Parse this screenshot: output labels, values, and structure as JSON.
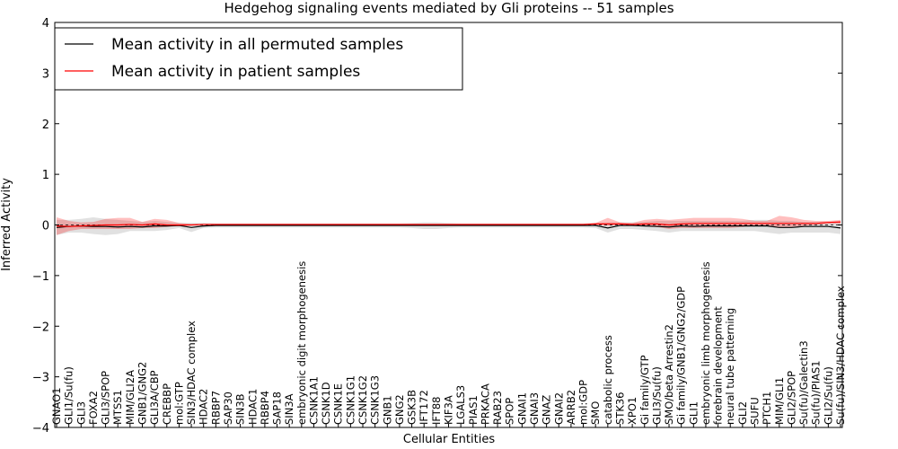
{
  "chart_data": {
    "type": "line",
    "title": "Hedgehog signaling events mediated by Gli proteins -- 51 samples",
    "xlabel": "Cellular Entities",
    "ylabel": "Inferred Activity",
    "ylim": [
      -4,
      4
    ],
    "yticks": [
      -4,
      -3,
      -2,
      -1,
      0,
      1,
      2,
      3,
      4
    ],
    "ytick_labels": [
      "−4",
      "−3",
      "−2",
      "−1",
      "0",
      "1",
      "2",
      "3",
      "4"
    ],
    "legend": {
      "location": "top-left",
      "entries": [
        {
          "label": "Mean activity in all permuted samples",
          "color": "#000000"
        },
        {
          "label": "Mean activity in patient samples",
          "color": "#ff0000"
        }
      ]
    },
    "categories": [
      "GNAO1",
      "GLI1/Su(fu)",
      "GLI3",
      "FOXA2",
      "GLI3/SPOP",
      "MTSS1",
      "MIM/GLI2A",
      "GNB1/GNG2",
      "GLI3A/CBP",
      "CREBBP",
      "mol:GTP",
      "SIN3/HDAC complex",
      "HDAC2",
      "RBBP7",
      "SAP30",
      "SIN3B",
      "HDAC1",
      "RBBP4",
      "SAP18",
      "SIN3A",
      "embryonic digit morphogenesis",
      "CSNK1A1",
      "CSNK1D",
      "CSNK1E",
      "CSNK1G1",
      "CSNK1G2",
      "CSNK1G3",
      "GNB1",
      "GNG2",
      "GSK3B",
      "IFT172",
      "IFT88",
      "KIF3A",
      "LGALS3",
      "PIAS1",
      "PRKACA",
      "RAB23",
      "SPOP",
      "GNAI1",
      "GNAI3",
      "GNAZ",
      "GNAI2",
      "ARRB2",
      "mol:GDP",
      "SMO",
      "catabolic process",
      "STK36",
      "XPO1",
      "Gi family/GTP",
      "GLI3/Su(fu)",
      "SMO/beta Arrestin2",
      "Gi family/GNB1/GNG2/GDP",
      "GLI1",
      "embryonic limb morphogenesis",
      "forebrain development",
      "neural tube patterning",
      "GLI2",
      "SUFU",
      "PTCH1",
      "MIM/GLI1",
      "GLI2/SPOP",
      "Su(fu)/Galectin3",
      "Su(fu)/PIAS1",
      "GLI2/Su(fu)",
      "Su(fu)/SIN3/HDAC complex"
    ],
    "series": [
      {
        "name": "Mean activity in all permuted samples",
        "color": "#000000",
        "values": [
          -0.05,
          -0.03,
          -0.02,
          -0.03,
          -0.03,
          -0.04,
          -0.03,
          -0.04,
          -0.02,
          -0.02,
          -0.01,
          -0.05,
          -0.02,
          -0.01,
          -0.01,
          -0.01,
          -0.01,
          -0.01,
          -0.01,
          -0.01,
          -0.01,
          -0.01,
          -0.01,
          -0.01,
          -0.01,
          -0.01,
          -0.01,
          -0.01,
          -0.01,
          -0.01,
          -0.01,
          -0.01,
          -0.01,
          -0.01,
          -0.01,
          -0.01,
          -0.01,
          -0.01,
          -0.01,
          -0.01,
          -0.01,
          -0.01,
          -0.01,
          -0.01,
          -0.01,
          -0.06,
          -0.01,
          -0.01,
          -0.02,
          -0.03,
          -0.04,
          -0.02,
          -0.03,
          -0.02,
          -0.02,
          -0.02,
          -0.02,
          -0.02,
          -0.02,
          -0.05,
          -0.05,
          -0.03,
          -0.03,
          -0.03,
          -0.06
        ],
        "lower": [
          -0.2,
          -0.15,
          -0.15,
          -0.18,
          -0.2,
          -0.18,
          -0.12,
          -0.12,
          -0.12,
          -0.1,
          -0.06,
          -0.14,
          -0.06,
          -0.05,
          -0.05,
          -0.05,
          -0.05,
          -0.05,
          -0.05,
          -0.05,
          -0.05,
          -0.05,
          -0.05,
          -0.05,
          -0.05,
          -0.05,
          -0.05,
          -0.05,
          -0.05,
          -0.06,
          -0.08,
          -0.08,
          -0.06,
          -0.05,
          -0.05,
          -0.05,
          -0.05,
          -0.05,
          -0.05,
          -0.05,
          -0.05,
          -0.05,
          -0.05,
          -0.05,
          -0.06,
          -0.15,
          -0.08,
          -0.08,
          -0.1,
          -0.12,
          -0.15,
          -0.12,
          -0.12,
          -0.12,
          -0.12,
          -0.12,
          -0.12,
          -0.12,
          -0.15,
          -0.18,
          -0.15,
          -0.15,
          -0.15,
          -0.15,
          -0.18
        ],
        "upper": [
          0.1,
          0.1,
          0.12,
          0.15,
          0.12,
          0.1,
          0.08,
          0.06,
          0.08,
          0.06,
          0.04,
          0.04,
          0.04,
          0.03,
          0.03,
          0.03,
          0.03,
          0.03,
          0.03,
          0.03,
          0.03,
          0.03,
          0.03,
          0.03,
          0.03,
          0.03,
          0.03,
          0.03,
          0.03,
          0.04,
          0.05,
          0.05,
          0.04,
          0.03,
          0.03,
          0.03,
          0.03,
          0.03,
          0.03,
          0.03,
          0.03,
          0.03,
          0.03,
          0.03,
          0.04,
          0.05,
          0.05,
          0.05,
          0.06,
          0.08,
          0.08,
          0.08,
          0.08,
          0.08,
          0.08,
          0.08,
          0.08,
          0.1,
          0.1,
          0.08,
          0.08,
          0.06,
          0.06,
          0.06,
          0.06
        ]
      },
      {
        "name": "Mean activity in patient samples",
        "color": "#ff0000",
        "values": [
          -0.02,
          -0.03,
          -0.02,
          -0.01,
          0.0,
          0.0,
          0.01,
          0.0,
          0.02,
          0.0,
          0.0,
          0.0,
          0.01,
          0.01,
          0.01,
          0.01,
          0.01,
          0.01,
          0.01,
          0.01,
          0.01,
          0.01,
          0.01,
          0.01,
          0.01,
          0.01,
          0.01,
          0.01,
          0.01,
          0.01,
          0.01,
          0.01,
          0.01,
          0.01,
          0.01,
          0.01,
          0.01,
          0.01,
          0.01,
          0.01,
          0.01,
          0.01,
          0.01,
          0.01,
          0.02,
          0.02,
          0.02,
          0.01,
          0.02,
          0.02,
          0.0,
          0.02,
          0.03,
          0.03,
          0.03,
          0.03,
          0.03,
          0.03,
          0.03,
          0.03,
          0.03,
          0.03,
          0.03,
          0.05,
          0.06
        ],
        "lower": [
          -0.2,
          -0.12,
          -0.08,
          -0.08,
          -0.08,
          -0.08,
          -0.08,
          -0.06,
          -0.06,
          -0.04,
          -0.02,
          -0.01,
          0.0,
          0.0,
          0.0,
          0.0,
          0.0,
          0.0,
          0.0,
          0.0,
          0.0,
          0.0,
          0.0,
          0.0,
          0.0,
          0.0,
          0.0,
          0.0,
          0.0,
          0.0,
          0.0,
          0.0,
          0.0,
          0.0,
          0.0,
          0.0,
          0.0,
          0.0,
          0.0,
          0.0,
          0.0,
          0.0,
          0.0,
          0.0,
          0.0,
          -0.02,
          0.0,
          0.0,
          -0.02,
          -0.04,
          -0.08,
          -0.06,
          -0.06,
          -0.06,
          -0.06,
          -0.06,
          -0.04,
          -0.02,
          -0.02,
          -0.05,
          -0.04,
          -0.02,
          0.0,
          0.02,
          0.02
        ],
        "upper": [
          0.15,
          0.08,
          0.05,
          0.06,
          0.12,
          0.14,
          0.14,
          0.06,
          0.12,
          0.1,
          0.04,
          0.02,
          0.02,
          0.02,
          0.02,
          0.02,
          0.02,
          0.02,
          0.02,
          0.02,
          0.02,
          0.02,
          0.02,
          0.02,
          0.02,
          0.02,
          0.02,
          0.02,
          0.02,
          0.02,
          0.02,
          0.02,
          0.02,
          0.02,
          0.02,
          0.02,
          0.02,
          0.02,
          0.02,
          0.02,
          0.02,
          0.02,
          0.02,
          0.02,
          0.04,
          0.14,
          0.05,
          0.04,
          0.1,
          0.12,
          0.1,
          0.12,
          0.14,
          0.14,
          0.14,
          0.14,
          0.12,
          0.08,
          0.08,
          0.18,
          0.15,
          0.1,
          0.08,
          0.08,
          0.1
        ]
      }
    ]
  }
}
